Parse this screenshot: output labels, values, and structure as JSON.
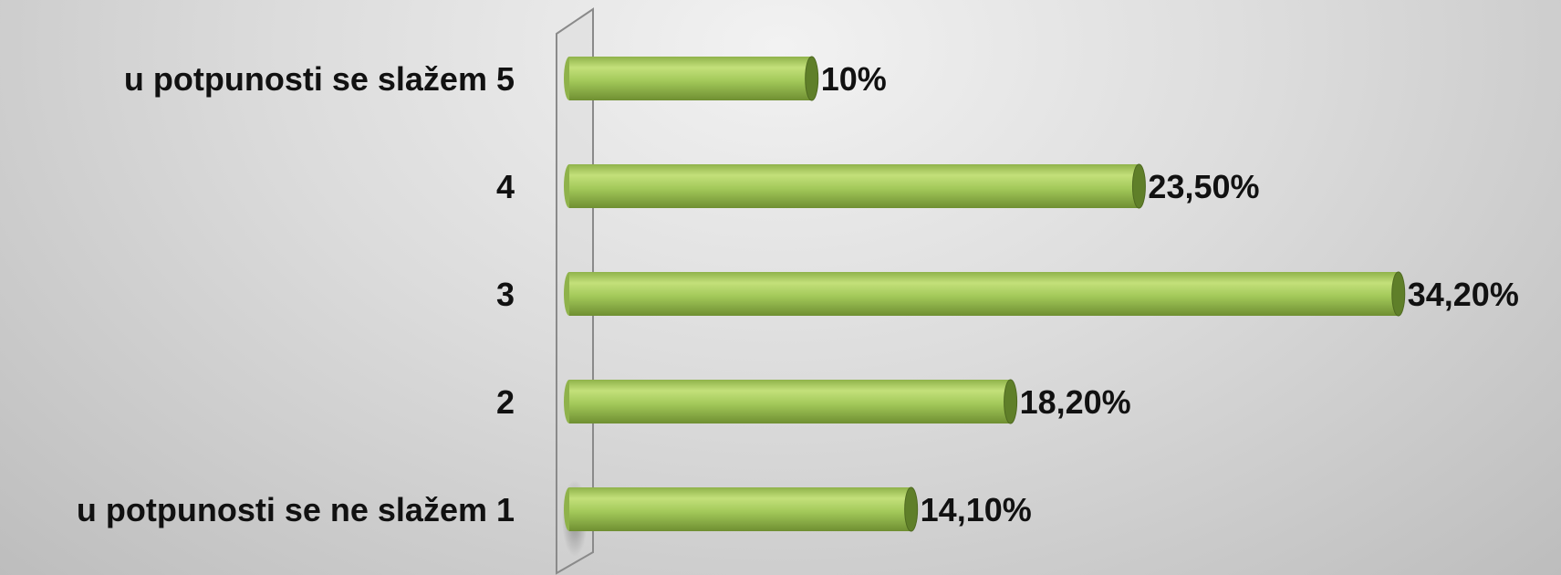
{
  "chart_data": {
    "type": "bar",
    "orientation": "horizontal",
    "categories": [
      "u potpunosti se slažem 5",
      "4",
      "3",
      "2",
      "u potpunosti se ne slažem 1"
    ],
    "values": [
      10,
      23.5,
      34.2,
      18.2,
      14.1
    ],
    "value_labels": [
      "10%",
      "23,50%",
      "34,20%",
      "18,20%",
      "14,10%"
    ],
    "xlim": [
      0,
      35
    ],
    "grid": false,
    "legend": "none"
  },
  "colors": {
    "bar_light": "#c3e07a",
    "bar_mid": "#a3c95a",
    "bar_dark": "#6f8f32",
    "bar_cap": "#5f7f29",
    "text": "#111111"
  }
}
